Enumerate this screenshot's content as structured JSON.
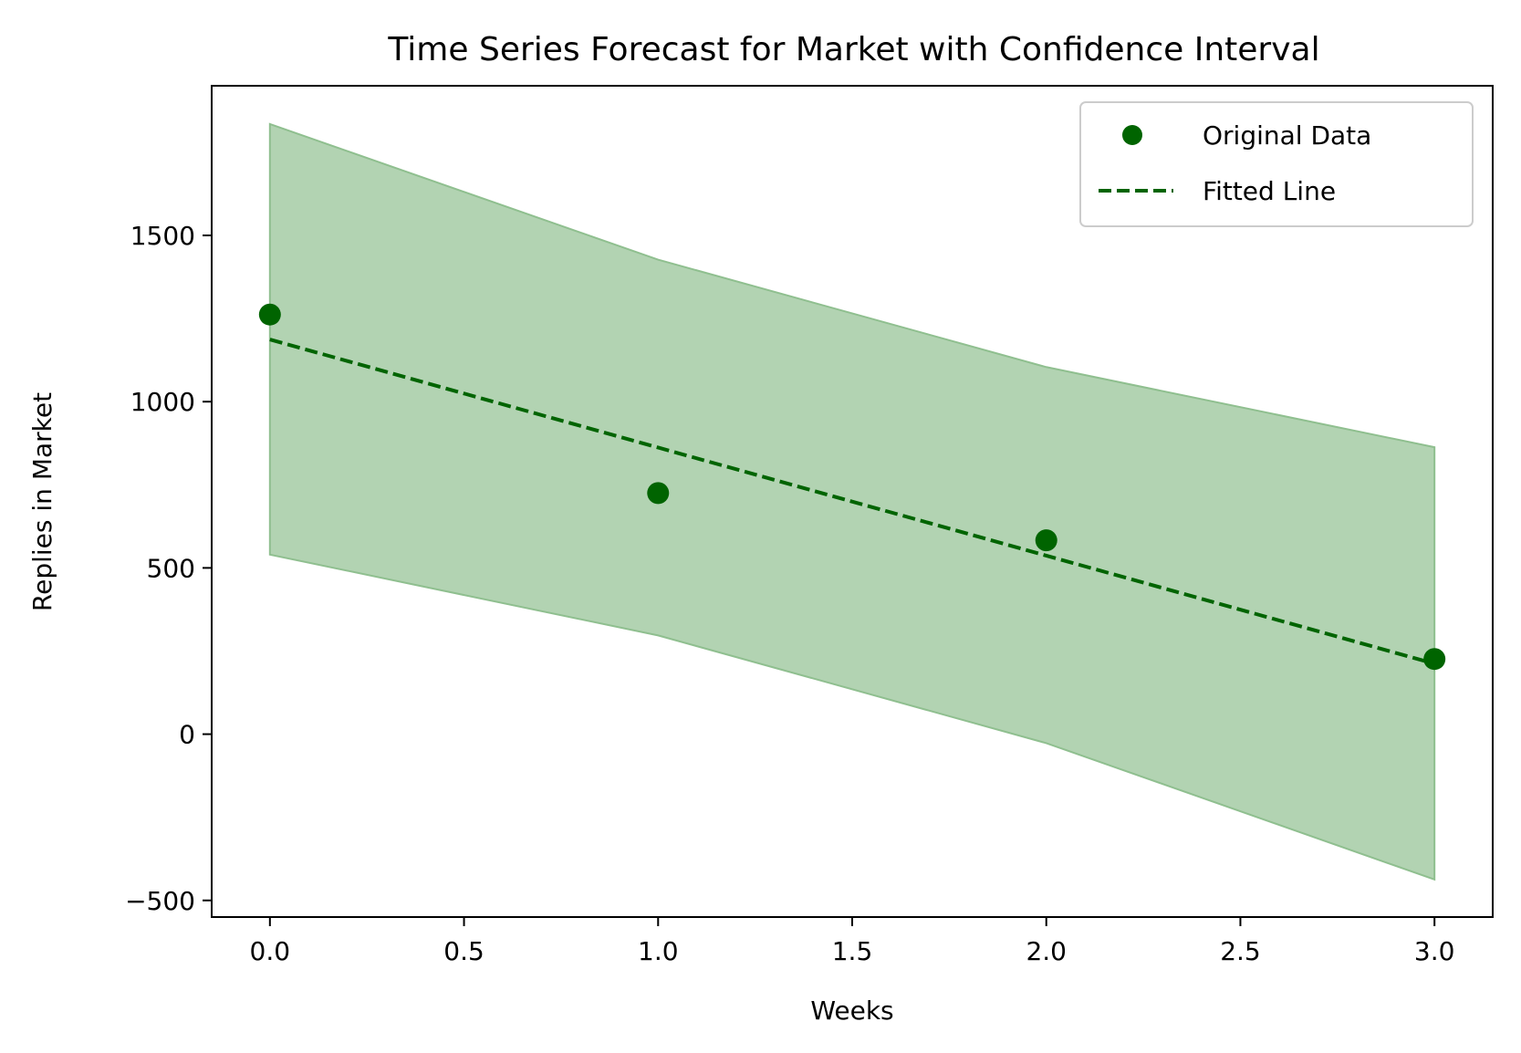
{
  "chart_data": {
    "type": "line",
    "title": "Time Series Forecast for Market with Confidence Interval",
    "xlabel": "Weeks",
    "ylabel": "Replies in Market",
    "xlim": [
      -0.15,
      3.15
    ],
    "ylim": [
      -550,
      1950
    ],
    "x_ticks": [
      0.0,
      0.5,
      1.0,
      1.5,
      2.0,
      2.5,
      3.0
    ],
    "x_tick_labels": [
      "0.0",
      "0.5",
      "1.0",
      "1.5",
      "2.0",
      "2.5",
      "3.0"
    ],
    "y_ticks": [
      -500,
      0,
      500,
      1000,
      1500
    ],
    "y_tick_labels": [
      "−500",
      "0",
      "500",
      "1000",
      "1500"
    ],
    "grid": false,
    "legend_position": "top-right",
    "series": [
      {
        "name": "Original Data",
        "kind": "scatter",
        "color": "#006400",
        "x": [
          0,
          1,
          2,
          3
        ],
        "y": [
          1262,
          725,
          583,
          226
        ]
      },
      {
        "name": "Fitted Line",
        "kind": "dashed-line",
        "color": "#006400",
        "x": [
          0,
          1,
          2,
          3
        ],
        "y": [
          1187,
          862,
          537,
          212
        ]
      }
    ],
    "confidence_interval": {
      "color": "#b2d3b2",
      "edge_color": "#8fbf8f",
      "x": [
        0,
        1,
        2,
        3
      ],
      "upper": [
        1835,
        1427,
        1104,
        863
      ],
      "lower": [
        540,
        297,
        -27,
        -437
      ]
    }
  }
}
